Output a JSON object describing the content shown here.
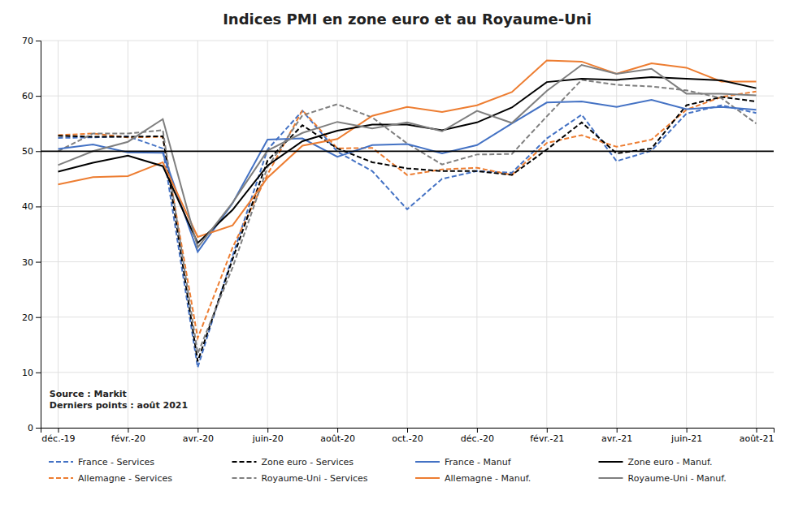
{
  "chart_data": {
    "type": "line",
    "title": "Indices PMI en zone euro et au Royaume-Uni",
    "annotation": "Source : Markit\nDerniers points : août 2021",
    "categories": [
      "déc.-19",
      null,
      "févr.-20",
      null,
      "avr.-20",
      null,
      "juin-20",
      null,
      "août-20",
      null,
      "oct.-20",
      null,
      "déc.-20",
      null,
      "févr.-21",
      null,
      "avr.-21",
      null,
      "juin-21",
      null,
      "août-21"
    ],
    "series": [
      {
        "name": "France - Services",
        "color": "#4472C4",
        "line_style": "dashed",
        "values": [
          52.4,
          52.5,
          52.7,
          50.5,
          10.9,
          31.1,
          50.3,
          57.3,
          49.9,
          46.4,
          39.5,
          45.0,
          46.4,
          46.1,
          52.3,
          56.6,
          48.2,
          50.1,
          56.8,
          58.3,
          56.9
        ]
      },
      {
        "name": "Allemagne - Services",
        "color": "#ED7D31",
        "line_style": "dashed",
        "values": [
          52.9,
          53.2,
          52.5,
          52.6,
          16.2,
          32.6,
          45.8,
          57.4,
          50.5,
          50.6,
          45.7,
          46.7,
          47.0,
          45.7,
          51.5,
          52.9,
          50.8,
          52.1,
          57.5,
          59.8,
          60.8
        ]
      },
      {
        "name": "Zone euro - Services",
        "color": "#000000",
        "line_style": "dashed",
        "values": [
          52.8,
          52.6,
          52.6,
          52.7,
          12.0,
          30.5,
          48.3,
          54.7,
          50.5,
          48.0,
          46.9,
          46.4,
          46.4,
          45.7,
          50.3,
          55.2,
          49.6,
          50.5,
          58.3,
          59.8,
          59.0
        ]
      },
      {
        "name": "Royaume-Uni - Services",
        "color": "#7F7F7F",
        "line_style": "dashed",
        "values": [
          50.0,
          53.2,
          53.2,
          53.8,
          13.4,
          29.0,
          47.1,
          56.5,
          58.5,
          56.1,
          51.4,
          47.6,
          49.4,
          49.5,
          56.3,
          62.9,
          62.0,
          61.7,
          61.0,
          59.6,
          55.0
        ]
      },
      {
        "name": "France - Manuf",
        "color": "#4472C4",
        "line_style": "solid",
        "values": [
          50.4,
          51.2,
          49.8,
          49.7,
          31.8,
          40.6,
          52.1,
          52.3,
          49.0,
          51.1,
          51.3,
          49.6,
          51.1,
          55.0,
          58.8,
          59.0,
          58.0,
          59.3,
          57.6,
          58.0,
          57.5
        ]
      },
      {
        "name": "Allemagne - Manuf.",
        "color": "#ED7D31",
        "line_style": "solid",
        "values": [
          44.0,
          45.3,
          45.5,
          48.0,
          34.5,
          36.6,
          45.2,
          51.0,
          52.2,
          56.4,
          58.0,
          57.1,
          58.3,
          60.7,
          66.4,
          66.2,
          64.0,
          65.9,
          65.1,
          62.6,
          62.6
        ]
      },
      {
        "name": "Zone euro - Manuf.",
        "color": "#000000",
        "line_style": "solid",
        "values": [
          46.3,
          47.9,
          49.2,
          47.3,
          33.4,
          39.4,
          47.4,
          51.8,
          53.7,
          54.8,
          54.8,
          53.8,
          55.2,
          57.9,
          62.5,
          63.1,
          62.9,
          63.4,
          63.1,
          62.8,
          61.4
        ]
      },
      {
        "name": "Royaume-Uni - Manuf.",
        "color": "#7F7F7F",
        "line_style": "solid",
        "values": [
          47.5,
          50.0,
          51.7,
          55.8,
          32.6,
          40.7,
          50.1,
          53.3,
          55.3,
          54.1,
          55.2,
          53.6,
          57.3,
          55.1,
          60.9,
          65.6,
          64.0,
          64.9,
          60.4,
          60.4,
          60.1
        ]
      }
    ],
    "reference_line": 50,
    "ylim": [
      0,
      70
    ],
    "yticks": [
      0,
      10,
      20,
      30,
      40,
      50,
      60,
      70
    ],
    "grid": true,
    "legend": "bottom"
  }
}
